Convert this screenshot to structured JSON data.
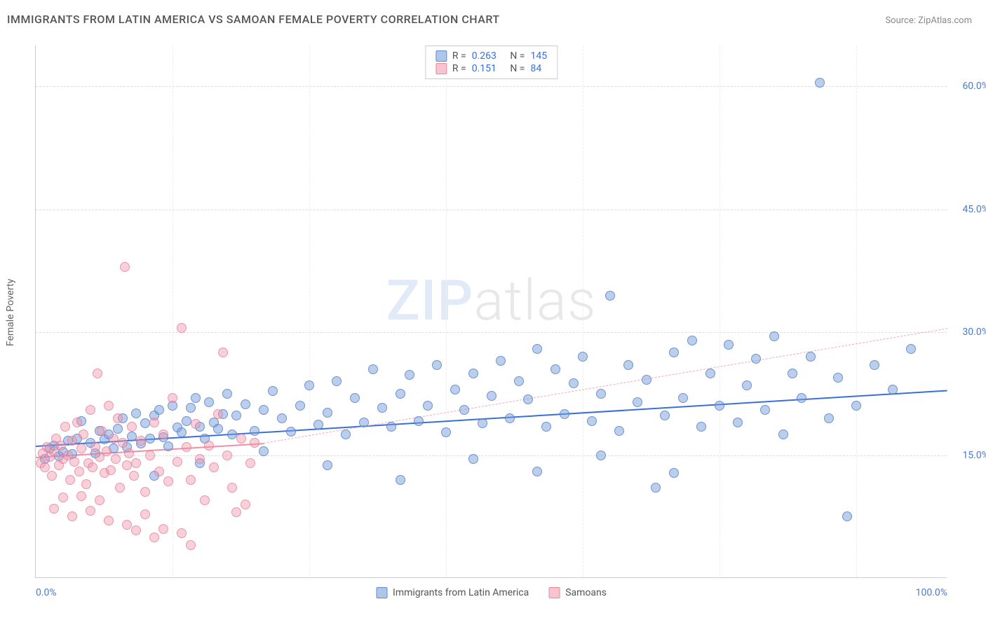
{
  "title": "IMMIGRANTS FROM LATIN AMERICA VS SAMOAN FEMALE POVERTY CORRELATION CHART",
  "source_label": "Source:",
  "source_name": "ZipAtlas.com",
  "ylabel": "Female Poverty",
  "watermark_zip": "ZIP",
  "watermark_atlas": "atlas",
  "chart": {
    "type": "scatter",
    "xlim": [
      0,
      100
    ],
    "ylim": [
      0,
      65
    ],
    "yticks": [
      15,
      30,
      45,
      60
    ],
    "ytick_labels": [
      "15.0%",
      "30.0%",
      "45.0%",
      "60.0%"
    ],
    "xticks": [
      0,
      100
    ],
    "xtick_labels": [
      "0.0%",
      "100.0%"
    ],
    "vgrid": [
      15,
      30,
      45,
      60,
      75,
      90
    ],
    "background_color": "#ffffff",
    "grid_color": "#dddddd",
    "marker_size": 14,
    "series": [
      {
        "name": "Immigrants from Latin America",
        "color_fill": "rgba(120,160,220,0.5)",
        "color_stroke": "rgba(80,120,200,0.7)",
        "css_class": "blue",
        "R": "0.263",
        "N": "145",
        "trend": {
          "x1": 0,
          "y1": 16.2,
          "x2": 100,
          "y2": 23.0,
          "color": "#3a6fd8",
          "width": 2
        },
        "points": [
          [
            1,
            14.5
          ],
          [
            1.5,
            15.8
          ],
          [
            2,
            16.2
          ],
          [
            2.5,
            14.9
          ],
          [
            3,
            15.4
          ],
          [
            3.5,
            16.8
          ],
          [
            4,
            15.1
          ],
          [
            4.5,
            17.0
          ],
          [
            5,
            19.2
          ],
          [
            6,
            16.5
          ],
          [
            6.5,
            15.2
          ],
          [
            7,
            18.0
          ],
          [
            7.5,
            16.9
          ],
          [
            8,
            17.5
          ],
          [
            8.5,
            15.8
          ],
          [
            9,
            18.2
          ],
          [
            9.5,
            19.5
          ],
          [
            10,
            16.0
          ],
          [
            10.5,
            17.3
          ],
          [
            11,
            20.1
          ],
          [
            11.5,
            16.4
          ],
          [
            12,
            18.9
          ],
          [
            12.5,
            17.0
          ],
          [
            13,
            19.8
          ],
          [
            13.5,
            20.5
          ],
          [
            14,
            17.2
          ],
          [
            14.5,
            16.1
          ],
          [
            15,
            21.0
          ],
          [
            15.5,
            18.4
          ],
          [
            16,
            17.8
          ],
          [
            16.5,
            19.2
          ],
          [
            17,
            20.8
          ],
          [
            17.5,
            22.0
          ],
          [
            18,
            18.5
          ],
          [
            18.5,
            17.0
          ],
          [
            19,
            21.5
          ],
          [
            19.5,
            19.0
          ],
          [
            20,
            18.2
          ],
          [
            20.5,
            20.0
          ],
          [
            21,
            22.5
          ],
          [
            21.5,
            17.5
          ],
          [
            22,
            19.8
          ],
          [
            23,
            21.2
          ],
          [
            24,
            18.0
          ],
          [
            25,
            20.5
          ],
          [
            26,
            22.8
          ],
          [
            27,
            19.5
          ],
          [
            28,
            17.9
          ],
          [
            29,
            21.0
          ],
          [
            30,
            23.5
          ],
          [
            31,
            18.7
          ],
          [
            32,
            20.2
          ],
          [
            33,
            24.0
          ],
          [
            34,
            17.5
          ],
          [
            35,
            22.0
          ],
          [
            36,
            19.0
          ],
          [
            37,
            25.5
          ],
          [
            38,
            20.8
          ],
          [
            39,
            18.5
          ],
          [
            40,
            22.5
          ],
          [
            41,
            24.8
          ],
          [
            42,
            19.2
          ],
          [
            43,
            21.0
          ],
          [
            44,
            26.0
          ],
          [
            45,
            17.8
          ],
          [
            46,
            23.0
          ],
          [
            47,
            20.5
          ],
          [
            48,
            25.0
          ],
          [
            49,
            18.9
          ],
          [
            50,
            22.2
          ],
          [
            51,
            26.5
          ],
          [
            52,
            19.5
          ],
          [
            53,
            24.0
          ],
          [
            54,
            21.8
          ],
          [
            55,
            28.0
          ],
          [
            56,
            18.5
          ],
          [
            57,
            25.5
          ],
          [
            58,
            20.0
          ],
          [
            59,
            23.8
          ],
          [
            60,
            27.0
          ],
          [
            61,
            19.2
          ],
          [
            62,
            22.5
          ],
          [
            63,
            34.5
          ],
          [
            64,
            18.0
          ],
          [
            65,
            26.0
          ],
          [
            66,
            21.5
          ],
          [
            67,
            24.2
          ],
          [
            68,
            11.0
          ],
          [
            69,
            19.8
          ],
          [
            70,
            27.5
          ],
          [
            71,
            22.0
          ],
          [
            72,
            29.0
          ],
          [
            73,
            18.5
          ],
          [
            74,
            25.0
          ],
          [
            75,
            21.0
          ],
          [
            76,
            28.5
          ],
          [
            77,
            19.0
          ],
          [
            78,
            23.5
          ],
          [
            79,
            26.8
          ],
          [
            80,
            20.5
          ],
          [
            81,
            29.5
          ],
          [
            82,
            17.5
          ],
          [
            83,
            25.0
          ],
          [
            84,
            22.0
          ],
          [
            85,
            27.0
          ],
          [
            86,
            60.5
          ],
          [
            87,
            19.5
          ],
          [
            88,
            24.5
          ],
          [
            89,
            7.5
          ],
          [
            90,
            21.0
          ],
          [
            92,
            26.0
          ],
          [
            94,
            23.0
          ],
          [
            96,
            28.0
          ],
          [
            13,
            12.5
          ],
          [
            18,
            14.0
          ],
          [
            25,
            15.5
          ],
          [
            32,
            13.8
          ],
          [
            40,
            12.0
          ],
          [
            48,
            14.5
          ],
          [
            55,
            13.0
          ],
          [
            62,
            15.0
          ],
          [
            70,
            12.8
          ]
        ]
      },
      {
        "name": "Samoans",
        "color_fill": "rgba(240,150,170,0.45)",
        "color_stroke": "rgba(230,110,140,0.6)",
        "css_class": "pink",
        "R": "0.151",
        "N": "84",
        "trend_solid": {
          "x1": 0,
          "y1": 14.8,
          "x2": 25,
          "y2": 16.5,
          "color": "#f08fa5",
          "width": 2
        },
        "trend_dash": {
          "x1": 25,
          "y1": 16.5,
          "x2": 100,
          "y2": 30.5,
          "color": "#f5a8b8",
          "width": 1.5
        },
        "points": [
          [
            0.5,
            14.0
          ],
          [
            0.8,
            15.2
          ],
          [
            1,
            13.5
          ],
          [
            1.2,
            16.0
          ],
          [
            1.5,
            14.8
          ],
          [
            1.8,
            12.5
          ],
          [
            2,
            15.5
          ],
          [
            2.2,
            17.0
          ],
          [
            2.5,
            13.8
          ],
          [
            2.8,
            16.2
          ],
          [
            3,
            14.5
          ],
          [
            3.2,
            18.5
          ],
          [
            3.5,
            15.0
          ],
          [
            3.8,
            12.0
          ],
          [
            4,
            16.8
          ],
          [
            4.2,
            14.2
          ],
          [
            4.5,
            19.0
          ],
          [
            4.8,
            13.0
          ],
          [
            5,
            15.8
          ],
          [
            5.2,
            17.5
          ],
          [
            5.5,
            11.5
          ],
          [
            5.8,
            14.0
          ],
          [
            6,
            20.5
          ],
          [
            6.2,
            13.5
          ],
          [
            6.5,
            16.0
          ],
          [
            6.8,
            25.0
          ],
          [
            7,
            14.8
          ],
          [
            7.2,
            18.0
          ],
          [
            7.5,
            12.8
          ],
          [
            7.8,
            15.5
          ],
          [
            8,
            21.0
          ],
          [
            8.2,
            13.2
          ],
          [
            8.5,
            17.0
          ],
          [
            8.8,
            14.5
          ],
          [
            9,
            19.5
          ],
          [
            9.2,
            11.0
          ],
          [
            9.5,
            16.5
          ],
          [
            9.8,
            38.0
          ],
          [
            10,
            13.8
          ],
          [
            10.2,
            15.2
          ],
          [
            10.5,
            18.5
          ],
          [
            10.8,
            12.5
          ],
          [
            11,
            14.0
          ],
          [
            11.5,
            16.8
          ],
          [
            12,
            10.5
          ],
          [
            12.5,
            15.0
          ],
          [
            13,
            19.0
          ],
          [
            13.5,
            13.0
          ],
          [
            14,
            17.5
          ],
          [
            14.5,
            11.8
          ],
          [
            15,
            22.0
          ],
          [
            15.5,
            14.2
          ],
          [
            16,
            30.5
          ],
          [
            16.5,
            16.0
          ],
          [
            17,
            12.0
          ],
          [
            17.5,
            18.8
          ],
          [
            18,
            14.5
          ],
          [
            18.5,
            9.5
          ],
          [
            19,
            16.2
          ],
          [
            19.5,
            13.5
          ],
          [
            20,
            20.0
          ],
          [
            20.5,
            27.5
          ],
          [
            21,
            15.0
          ],
          [
            21.5,
            11.0
          ],
          [
            22,
            8.0
          ],
          [
            22.5,
            17.0
          ],
          [
            23,
            9.0
          ],
          [
            23.5,
            14.0
          ],
          [
            24,
            16.5
          ],
          [
            2,
            8.5
          ],
          [
            3,
            9.8
          ],
          [
            4,
            7.5
          ],
          [
            5,
            10.0
          ],
          [
            6,
            8.2
          ],
          [
            7,
            9.5
          ],
          [
            8,
            7.0
          ],
          [
            10,
            6.5
          ],
          [
            12,
            7.8
          ],
          [
            14,
            6.0
          ],
          [
            16,
            5.5
          ],
          [
            17,
            4.0
          ],
          [
            13,
            5.0
          ],
          [
            11,
            5.8
          ]
        ]
      }
    ],
    "legend_top": {
      "label_R": "R =",
      "label_N": "N ="
    },
    "legend_bottom": [
      {
        "swatch": "blue",
        "label": "Immigrants from Latin America"
      },
      {
        "swatch": "pink",
        "label": "Samoans"
      }
    ]
  }
}
